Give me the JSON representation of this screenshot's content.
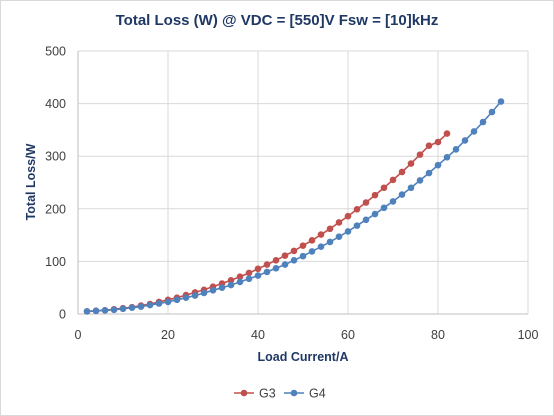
{
  "chart_data": {
    "type": "line",
    "title": "Total Loss (W) @ VDC = [550]V Fsw = [10]kHz",
    "xlabel": "Load Current/A",
    "ylabel": "Total Loss/W",
    "xlim": [
      0,
      100
    ],
    "ylim": [
      0,
      500
    ],
    "xticks": [
      "0",
      "20",
      "40",
      "60",
      "80",
      "100"
    ],
    "yticks": [
      "0",
      "100",
      "200",
      "300",
      "400",
      "500"
    ],
    "grid": "vertical and horizontal",
    "legend_position": "bottom",
    "series": [
      {
        "name": "G3",
        "color": "#c0504d",
        "x": [
          2,
          4,
          6,
          8,
          10,
          12,
          14,
          16,
          18,
          20,
          22,
          24,
          26,
          28,
          30,
          32,
          34,
          36,
          38,
          40,
          42,
          44,
          46,
          48,
          50,
          52,
          54,
          56,
          58,
          60,
          62,
          64,
          66,
          68,
          70,
          72,
          74,
          76,
          78,
          80,
          82
        ],
        "y": [
          5,
          6,
          7,
          9,
          11,
          13,
          16,
          19,
          23,
          27,
          31,
          36,
          41,
          46,
          52,
          58,
          64,
          71,
          78,
          86,
          94,
          102,
          111,
          120,
          130,
          140,
          151,
          162,
          174,
          186,
          199,
          212,
          226,
          240,
          255,
          270,
          286,
          303,
          320,
          327,
          343
        ]
      },
      {
        "name": "G4",
        "color": "#4f81bd",
        "x": [
          2,
          4,
          6,
          8,
          10,
          12,
          14,
          16,
          18,
          20,
          22,
          24,
          26,
          28,
          30,
          32,
          34,
          36,
          38,
          40,
          42,
          44,
          46,
          48,
          50,
          52,
          54,
          56,
          58,
          60,
          62,
          64,
          66,
          68,
          70,
          72,
          74,
          76,
          78,
          80,
          82,
          84,
          86,
          88,
          90,
          92,
          94
        ],
        "y": [
          5,
          6,
          7,
          8,
          10,
          12,
          14,
          17,
          20,
          23,
          27,
          31,
          35,
          40,
          45,
          50,
          55,
          61,
          67,
          73,
          80,
          87,
          94,
          102,
          110,
          119,
          128,
          137,
          147,
          157,
          168,
          179,
          190,
          202,
          214,
          227,
          240,
          254,
          268,
          283,
          298,
          313,
          330,
          347,
          365,
          384,
          404
        ]
      }
    ]
  }
}
